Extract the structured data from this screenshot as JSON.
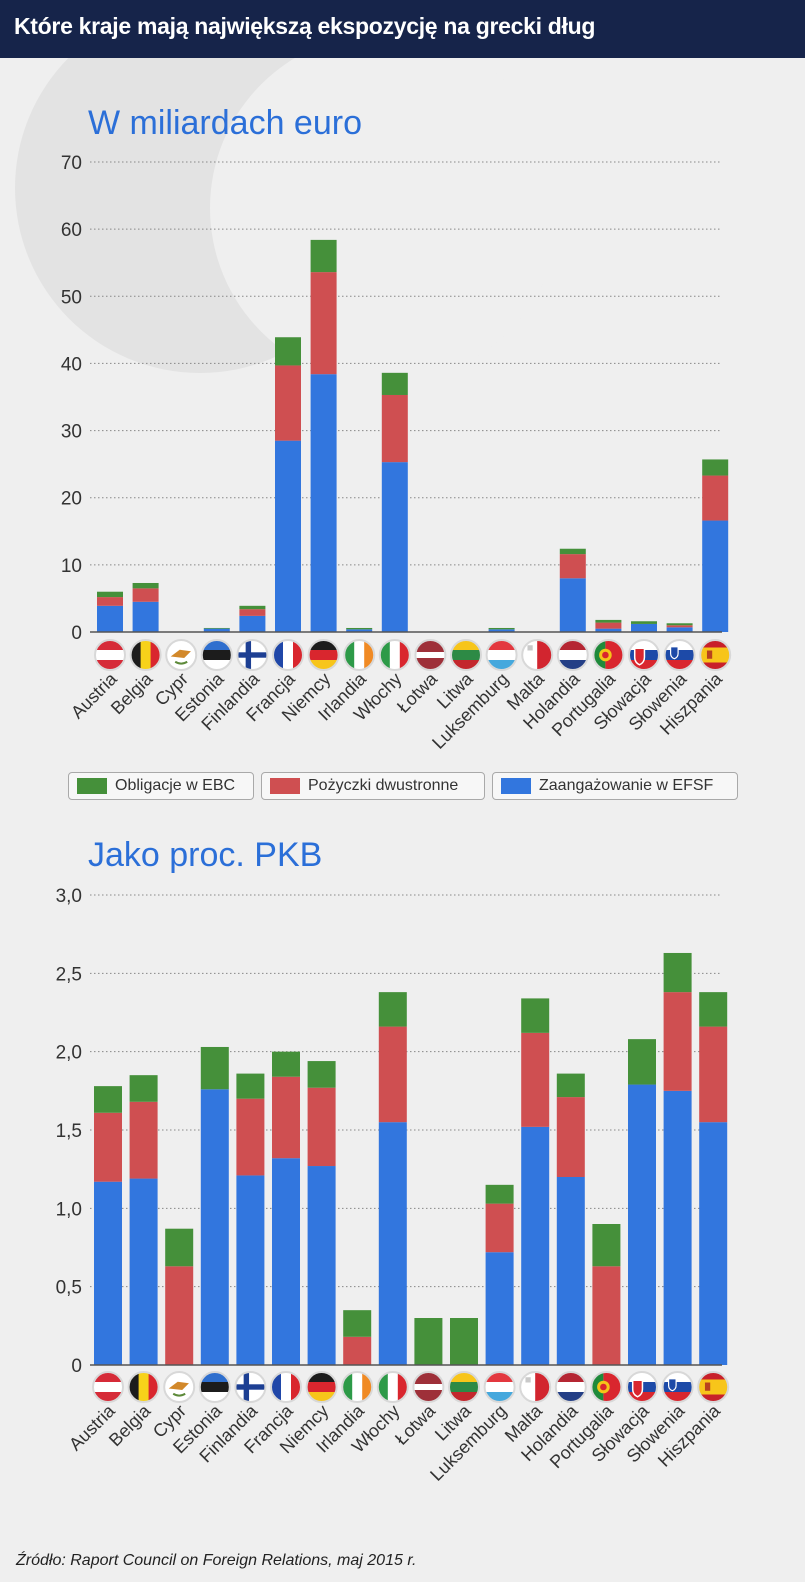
{
  "header": {
    "title": "Które kraje mają największą ekspozycję na grecki dług"
  },
  "colors": {
    "ecb": "#45903a",
    "bilateral": "#cf4f51",
    "efsf": "#3276de",
    "header_bg": "#16244a",
    "subtitle": "#2b6fd8"
  },
  "legend": {
    "ecb": "Obligacje w EBC",
    "bilateral": "Pożyczki dwustronne",
    "efsf": "Zaangażowanie w EFSF"
  },
  "flags": {
    "Austria": "flag-austria-icon",
    "Belgia": "flag-belgium-icon",
    "Cypr": "flag-cyprus-icon",
    "Estonia": "flag-estonia-icon",
    "Finlandia": "flag-finland-icon",
    "Francja": "flag-france-icon",
    "Niemcy": "flag-germany-icon",
    "Irlandia": "flag-ireland-icon",
    "Włochy": "flag-italy-icon",
    "Łotwa": "flag-latvia-icon",
    "Litwa": "flag-lithuania-icon",
    "Luksemburg": "flag-luxembourg-icon",
    "Malta": "flag-malta-icon",
    "Holandia": "flag-netherlands-icon",
    "Portugalia": "flag-portugal-icon",
    "Słowacja": "flag-slovakia-icon",
    "Słowenia": "flag-slovenia-icon",
    "Hiszpania": "flag-spain-icon"
  },
  "chart_data": [
    {
      "type": "bar",
      "stacked": true,
      "title": "W miliardach euro",
      "xlabel": "",
      "ylabel": "",
      "ylim": [
        0,
        70
      ],
      "yticks": [
        "0",
        "10",
        "20",
        "30",
        "40",
        "50",
        "60",
        "70"
      ],
      "grid": true,
      "categories": [
        "Austria",
        "Belgia",
        "Cypr",
        "Estonia",
        "Finlandia",
        "Francja",
        "Niemcy",
        "Irlandia",
        "Włochy",
        "Łotwa",
        "Litwa",
        "Luksemburg",
        "Malta",
        "Holandia",
        "Portugalia",
        "Słowacja",
        "Słowenia",
        "Hiszpania"
      ],
      "series": [
        {
          "name": "Zaangażowanie w EFSF",
          "key": "efsf",
          "values": [
            3.9,
            4.5,
            0,
            0.5,
            2.4,
            28.5,
            38.4,
            0.4,
            25.3,
            0,
            0,
            0.4,
            0,
            8.0,
            0.5,
            1.2,
            0.7,
            16.6
          ]
        },
        {
          "name": "Pożyczki dwustronne",
          "key": "bilateral",
          "values": [
            1.3,
            2.0,
            0,
            0,
            1.0,
            11.2,
            15.2,
            0,
            10.0,
            0,
            0,
            0,
            0,
            3.6,
            0.9,
            0,
            0.3,
            6.7
          ]
        },
        {
          "name": "Obligacje w EBC",
          "key": "ecb",
          "values": [
            0.8,
            0.8,
            0,
            0.1,
            0.5,
            4.2,
            4.8,
            0.2,
            3.3,
            0,
            0,
            0.2,
            0,
            0.8,
            0.4,
            0.4,
            0.3,
            2.4
          ]
        }
      ]
    },
    {
      "type": "bar",
      "stacked": true,
      "title": "Jako proc. PKB",
      "xlabel": "",
      "ylabel": "",
      "ylim": [
        0,
        3.0
      ],
      "yticks": [
        "0",
        "0,5",
        "1,0",
        "1,5",
        "2,0",
        "2,5",
        "3,0"
      ],
      "grid": true,
      "categories": [
        "Austria",
        "Belgia",
        "Cypr",
        "Estonia",
        "Finlandia",
        "Francja",
        "Niemcy",
        "Irlandia",
        "Włochy",
        "Łotwa",
        "Litwa",
        "Luksemburg",
        "Malta",
        "Holandia",
        "Portugalia",
        "Słowacja",
        "Słowenia",
        "Hiszpania"
      ],
      "series": [
        {
          "name": "Zaangażowanie w EFSF",
          "key": "efsf",
          "values": [
            1.17,
            1.19,
            0,
            1.76,
            1.21,
            1.32,
            1.27,
            0,
            1.55,
            0,
            0,
            0.72,
            1.52,
            1.2,
            0,
            1.79,
            1.75,
            1.55
          ]
        },
        {
          "name": "Pożyczki dwustronne",
          "key": "bilateral",
          "values": [
            0.44,
            0.49,
            0.63,
            0,
            0.49,
            0.52,
            0.5,
            0.18,
            0.61,
            0,
            0,
            0.31,
            0.6,
            0.51,
            0.63,
            0,
            0.63,
            0.61
          ]
        },
        {
          "name": "Obligacje w EBC",
          "key": "ecb",
          "values": [
            0.17,
            0.17,
            0.24,
            0.27,
            0.16,
            0.16,
            0.17,
            0.17,
            0.22,
            0.3,
            0.3,
            0.12,
            0.22,
            0.15,
            0.27,
            0.29,
            0.25,
            0.22
          ]
        }
      ]
    }
  ],
  "source": "Źródło: Raport Council on Foreign Relations, maj 2015 r."
}
